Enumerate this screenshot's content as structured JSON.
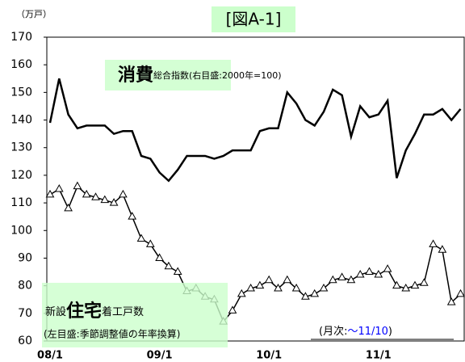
{
  "chart_data": {
    "type": "line",
    "title": "[図A-1]",
    "y_unit": "（万戸）",
    "categories": [
      "08/1",
      null,
      null,
      null,
      null,
      null,
      null,
      null,
      null,
      null,
      null,
      null,
      "09/1",
      null,
      null,
      null,
      null,
      null,
      null,
      null,
      null,
      null,
      null,
      null,
      "10/1",
      null,
      null,
      null,
      null,
      null,
      null,
      null,
      null,
      null,
      null,
      null,
      "11/1",
      null,
      null,
      null,
      null,
      null,
      null,
      null,
      null,
      null
    ],
    "series": [
      {
        "name": [
          "消費",
          "総合指数(右目盛:2000年=100)"
        ],
        "color": "#000000",
        "marker": "none",
        "values": [
          139,
          155,
          142,
          137,
          138,
          138,
          138,
          135,
          136,
          136,
          127,
          126,
          121,
          118,
          122,
          127,
          127,
          127,
          126,
          127,
          129,
          129,
          129,
          136,
          137,
          137,
          150,
          146,
          140,
          138,
          143,
          151,
          149,
          134,
          145,
          141,
          142,
          147,
          119,
          129,
          135,
          142,
          142,
          144,
          140,
          144
        ]
      },
      {
        "name": [
          "新設",
          "住宅",
          "着工戸数"
        ],
        "subtitle": "(左目盛:季節調整値の年率換算)",
        "color": "#000000",
        "marker": "triangle",
        "values": [
          113,
          115,
          108,
          116,
          113,
          112,
          111,
          110,
          113,
          105,
          97,
          95,
          90,
          87,
          85,
          78,
          79,
          76,
          75,
          67,
          71,
          77,
          79,
          80,
          82,
          79,
          82,
          79,
          76,
          77,
          79,
          82,
          83,
          82,
          84,
          85,
          84,
          86,
          80,
          79,
          80,
          81,
          95,
          93,
          74,
          77
        ]
      }
    ],
    "note": [
      "(月次:",
      "～11/10",
      ")"
    ],
    "ylim": [
      60,
      170
    ],
    "yticks": [
      60,
      70,
      80,
      90,
      100,
      110,
      120,
      130,
      140,
      150,
      160,
      170
    ],
    "grid": false
  }
}
